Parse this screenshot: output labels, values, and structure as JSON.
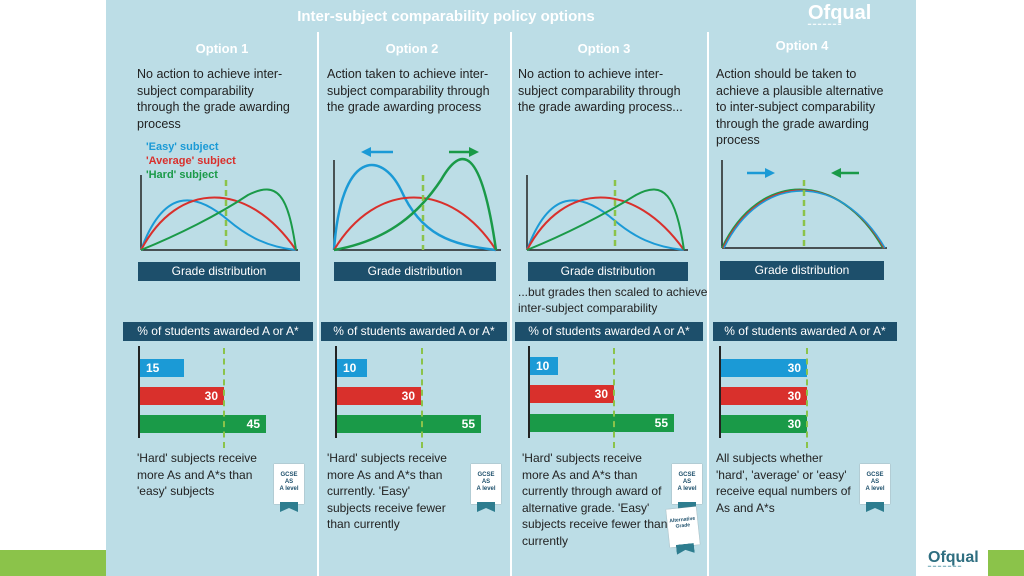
{
  "title": "Inter-subject comparability policy options",
  "logo": "Ofqual",
  "legend": {
    "easy": "'Easy' subject",
    "average": "'Average' subject",
    "hard": "'Hard' subject"
  },
  "colors": {
    "easy": "#1b9ad6",
    "average": "#d9302c",
    "hard": "#1a9a48",
    "dash": "#8bc34a",
    "bar_label_bg": "#1d4f6b"
  },
  "grade_distribution_label": "Grade distribution",
  "percent_label": "% of students awarded A or A*",
  "badge": {
    "line1": "GCSE",
    "line2": "AS",
    "line3": "A level"
  },
  "alt_badge": {
    "line1": "Alternative",
    "line2": "Grade"
  },
  "options": [
    {
      "title": "Option 1",
      "description": "No action to achieve inter-subject comparability through the grade awarding process",
      "bars": {
        "easy": 15,
        "average": 30,
        "hard": 45
      },
      "bottom": "'Hard' subjects receive more As and A*s than 'easy' subjects"
    },
    {
      "title": "Option 2",
      "description": "Action taken to achieve inter-subject comparability through the grade awarding process",
      "bars": {
        "easy": 10,
        "average": 30,
        "hard": 55
      },
      "bottom": "'Hard' subjects receive more As and A*s than currently. 'Easy' subjects receive fewer than currently"
    },
    {
      "title": "Option 3",
      "description": "No action to achieve inter-subject comparability through the grade awarding process...",
      "note": "...but grades then scaled  to achieve inter-subject comparability",
      "bars": {
        "easy": 10,
        "average": 30,
        "hard": 55
      },
      "bottom": "'Hard' subjects receive more As and A*s than currently through award of alternative grade. 'Easy' subjects receive fewer than currently"
    },
    {
      "title": "Option 4",
      "description": "Action should be taken to achieve a plausible alternative to inter-subject comparability through the grade awarding process",
      "bars": {
        "easy": 30,
        "average": 30,
        "hard": 30
      },
      "bottom": "All subjects whether 'hard', 'average' or 'easy' receive equal numbers of As and A*s"
    }
  ]
}
